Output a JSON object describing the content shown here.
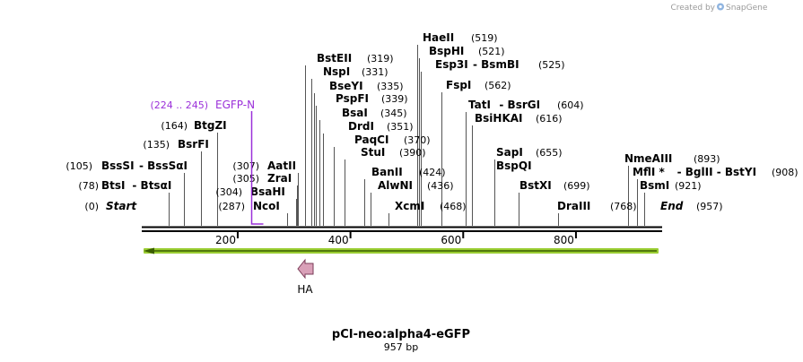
{
  "header": {
    "created_by": "Created by",
    "brand": "SnapGene"
  },
  "map": {
    "title": "pCI-neo:alpha4-eGFP",
    "length_label": "957 bp",
    "length": 957,
    "start_label": "Start",
    "start_pos": "(0)",
    "end_label": "End",
    "end_pos": "(957)",
    "ticks": [
      {
        "value": 200,
        "label": "200"
      },
      {
        "value": 400,
        "label": "400"
      },
      {
        "value": 600,
        "label": "600"
      },
      {
        "value": 800,
        "label": "800"
      }
    ],
    "sites": [
      {
        "name": "BtsI",
        "sep": "-",
        "name2": "BtsαI",
        "pos": 78,
        "pos_label": "(78)",
        "side": "left"
      },
      {
        "name": "BssSI",
        "sep": "-",
        "name2": "BssSαI",
        "pos": 105,
        "pos_label": "(105)",
        "side": "left"
      },
      {
        "name": "BsrFI",
        "pos": 135,
        "pos_label": "(135)",
        "side": "left"
      },
      {
        "name": "BtgZI",
        "pos": 164,
        "pos_label": "(164)",
        "side": "left"
      },
      {
        "name": "NcoI",
        "pos": 287,
        "pos_label": "(287)",
        "side": "left"
      },
      {
        "name": "BsaHI",
        "pos": 304,
        "pos_label": "(304)",
        "side": "left"
      },
      {
        "name": "ZraI",
        "pos": 305,
        "pos_label": "(305)",
        "side": "left"
      },
      {
        "name": "AatII",
        "pos": 307,
        "pos_label": "(307)",
        "side": "left"
      },
      {
        "name": "BstEII",
        "pos": 319,
        "pos_label": "(319)",
        "side": "right"
      },
      {
        "name": "NspI",
        "pos": 331,
        "pos_label": "(331)",
        "side": "right"
      },
      {
        "name": "BseYI",
        "pos": 335,
        "pos_label": "(335)",
        "side": "right"
      },
      {
        "name": "PspFI",
        "pos": 339,
        "pos_label": "(339)",
        "side": "right"
      },
      {
        "name": "BsaI",
        "pos": 345,
        "pos_label": "(345)",
        "side": "right"
      },
      {
        "name": "DrdI",
        "pos": 351,
        "pos_label": "(351)",
        "side": "right"
      },
      {
        "name": "PaqCI",
        "pos": 370,
        "pos_label": "(370)",
        "side": "right"
      },
      {
        "name": "StuI",
        "pos": 390,
        "pos_label": "(390)",
        "side": "right"
      },
      {
        "name": "BanII",
        "pos": 424,
        "pos_label": "(424)",
        "side": "right"
      },
      {
        "name": "AlwNI",
        "pos": 436,
        "pos_label": "(436)",
        "side": "right"
      },
      {
        "name": "XcmI",
        "pos": 468,
        "pos_label": "(468)",
        "side": "right"
      },
      {
        "name": "HaeII",
        "pos": 519,
        "pos_label": "(519)",
        "side": "right"
      },
      {
        "name": "BspHI",
        "pos": 521,
        "pos_label": "(521)",
        "side": "right"
      },
      {
        "name": "Esp3I",
        "sep": "-",
        "name2": "BsmBI",
        "pos": 525,
        "pos_label": "(525)",
        "side": "right"
      },
      {
        "name": "FspI",
        "pos": 562,
        "pos_label": "(562)",
        "side": "right"
      },
      {
        "name": "TatI",
        "sep": "-",
        "name2": "BsrGI",
        "pos": 604,
        "pos_label": "(604)",
        "side": "right"
      },
      {
        "name": "BsiHKAI",
        "pos": 616,
        "pos_label": "(616)",
        "side": "right"
      },
      {
        "name": "SapI",
        "pos": 655,
        "pos_label": "(655)",
        "side": "right"
      },
      {
        "name": "BspQI",
        "pos": 655,
        "pos_label": "",
        "side": "right"
      },
      {
        "name": "BstXI",
        "pos": 699,
        "pos_label": "(699)",
        "side": "right"
      },
      {
        "name": "DraIII",
        "pos": 768,
        "pos_label": "(768)",
        "side": "right"
      },
      {
        "name": "NmeAIII",
        "pos": 893,
        "pos_label": "(893)",
        "side": "right"
      },
      {
        "name": "MflI *",
        "sep": "-",
        "name2": "BglII  -  BstYI",
        "pos": 908,
        "pos_label": "(908)",
        "side": "right"
      },
      {
        "name": "BsmI",
        "pos": 921,
        "pos_label": "(921)",
        "side": "right"
      }
    ],
    "features": [
      {
        "name": "EGFP-N",
        "range_label": "(224 .. 245)",
        "start": 224,
        "end": 245,
        "color": "#9b30d9"
      }
    ],
    "orf": {
      "start": 0,
      "end": 957,
      "direction": "reverse",
      "color": "#9acd32",
      "stroke": "#3b5e00"
    },
    "ha_tag": {
      "label": "HA",
      "pos": 300,
      "direction": "reverse",
      "color": "#d9a0b8",
      "stroke": "#7a3b57"
    }
  }
}
